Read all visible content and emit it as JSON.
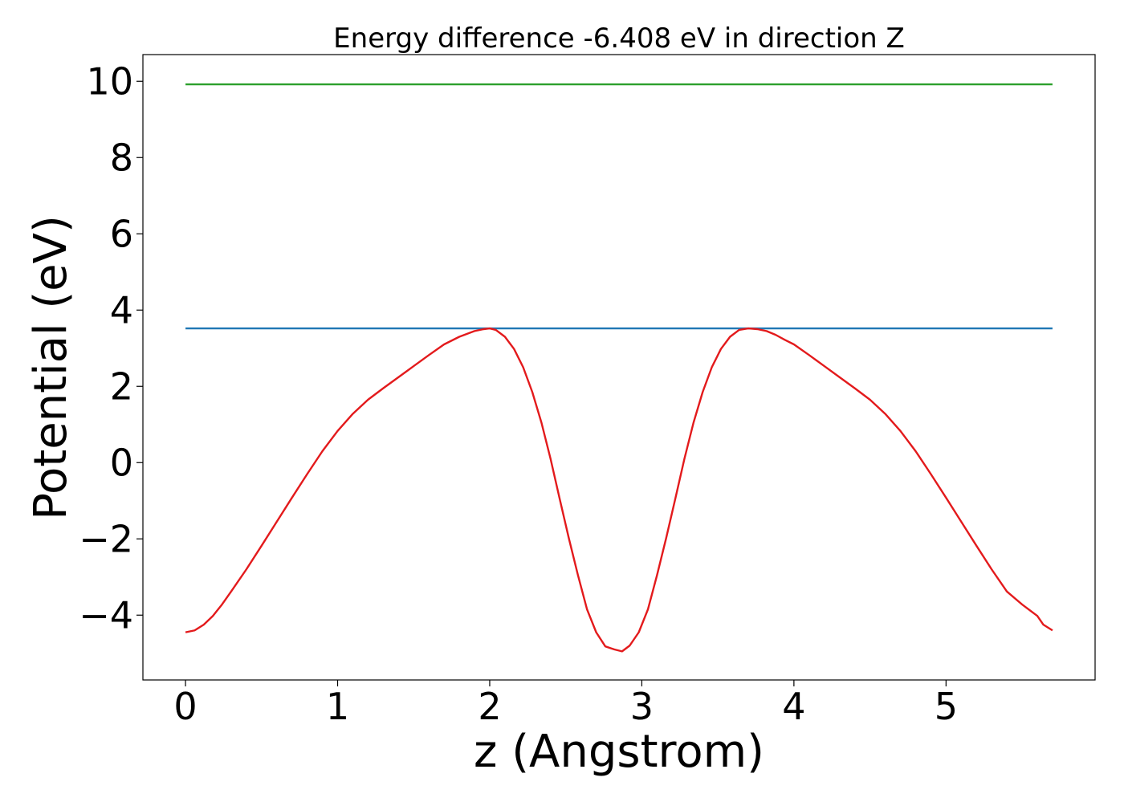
{
  "chart_data": {
    "type": "line",
    "title": "Energy difference -6.408 eV in direction Z",
    "xlabel": "z (Angstrom)",
    "ylabel": "Potential (eV)",
    "xlim": [
      -0.28,
      5.98
    ],
    "ylim": [
      -5.7,
      10.7
    ],
    "xticks": [
      0,
      1,
      2,
      3,
      4,
      5
    ],
    "yticks": [
      -4,
      -2,
      0,
      2,
      4,
      6,
      8,
      10
    ],
    "grid": false,
    "series": [
      {
        "color": "#2ca02c",
        "x": [
          0.0,
          5.7
        ],
        "y": [
          9.92,
          9.92
        ]
      },
      {
        "color": "#1f77b4",
        "x": [
          0.0,
          5.7
        ],
        "y": [
          3.52,
          3.52
        ]
      },
      {
        "color": "#e31a1c",
        "x": [
          0.0,
          0.06,
          0.12,
          0.18,
          0.24,
          0.3,
          0.4,
          0.5,
          0.6,
          0.7,
          0.8,
          0.9,
          1.0,
          1.1,
          1.2,
          1.3,
          1.4,
          1.5,
          1.6,
          1.7,
          1.8,
          1.9,
          1.96,
          2.0,
          2.04,
          2.1,
          2.16,
          2.22,
          2.28,
          2.34,
          2.4,
          2.46,
          2.52,
          2.58,
          2.64,
          2.7,
          2.76,
          2.82,
          2.87,
          2.92,
          2.98,
          3.04,
          3.1,
          3.16,
          3.22,
          3.28,
          3.34,
          3.4,
          3.46,
          3.52,
          3.58,
          3.64,
          3.7,
          3.76,
          3.82,
          3.88,
          3.94,
          4.0,
          4.1,
          4.2,
          4.3,
          4.4,
          4.5,
          4.6,
          4.7,
          4.8,
          4.9,
          5.0,
          5.1,
          5.2,
          5.3,
          5.4,
          5.5,
          5.6,
          5.64,
          5.7
        ],
        "y": [
          -4.45,
          -4.4,
          -4.25,
          -4.02,
          -3.72,
          -3.38,
          -2.8,
          -2.18,
          -1.55,
          -0.92,
          -0.3,
          0.3,
          0.83,
          1.28,
          1.65,
          1.95,
          2.24,
          2.53,
          2.82,
          3.1,
          3.3,
          3.45,
          3.5,
          3.52,
          3.48,
          3.3,
          2.98,
          2.5,
          1.85,
          1.05,
          0.1,
          -0.95,
          -1.98,
          -2.95,
          -3.85,
          -4.45,
          -4.82,
          -4.9,
          -4.95,
          -4.8,
          -4.45,
          -3.85,
          -2.95,
          -1.98,
          -0.95,
          0.1,
          1.05,
          1.85,
          2.5,
          2.98,
          3.3,
          3.48,
          3.52,
          3.5,
          3.45,
          3.35,
          3.22,
          3.1,
          2.82,
          2.53,
          2.24,
          1.95,
          1.65,
          1.28,
          0.83,
          0.3,
          -0.3,
          -0.92,
          -1.55,
          -2.18,
          -2.8,
          -3.38,
          -3.72,
          -4.02,
          -4.25,
          -4.4
        ]
      }
    ]
  }
}
